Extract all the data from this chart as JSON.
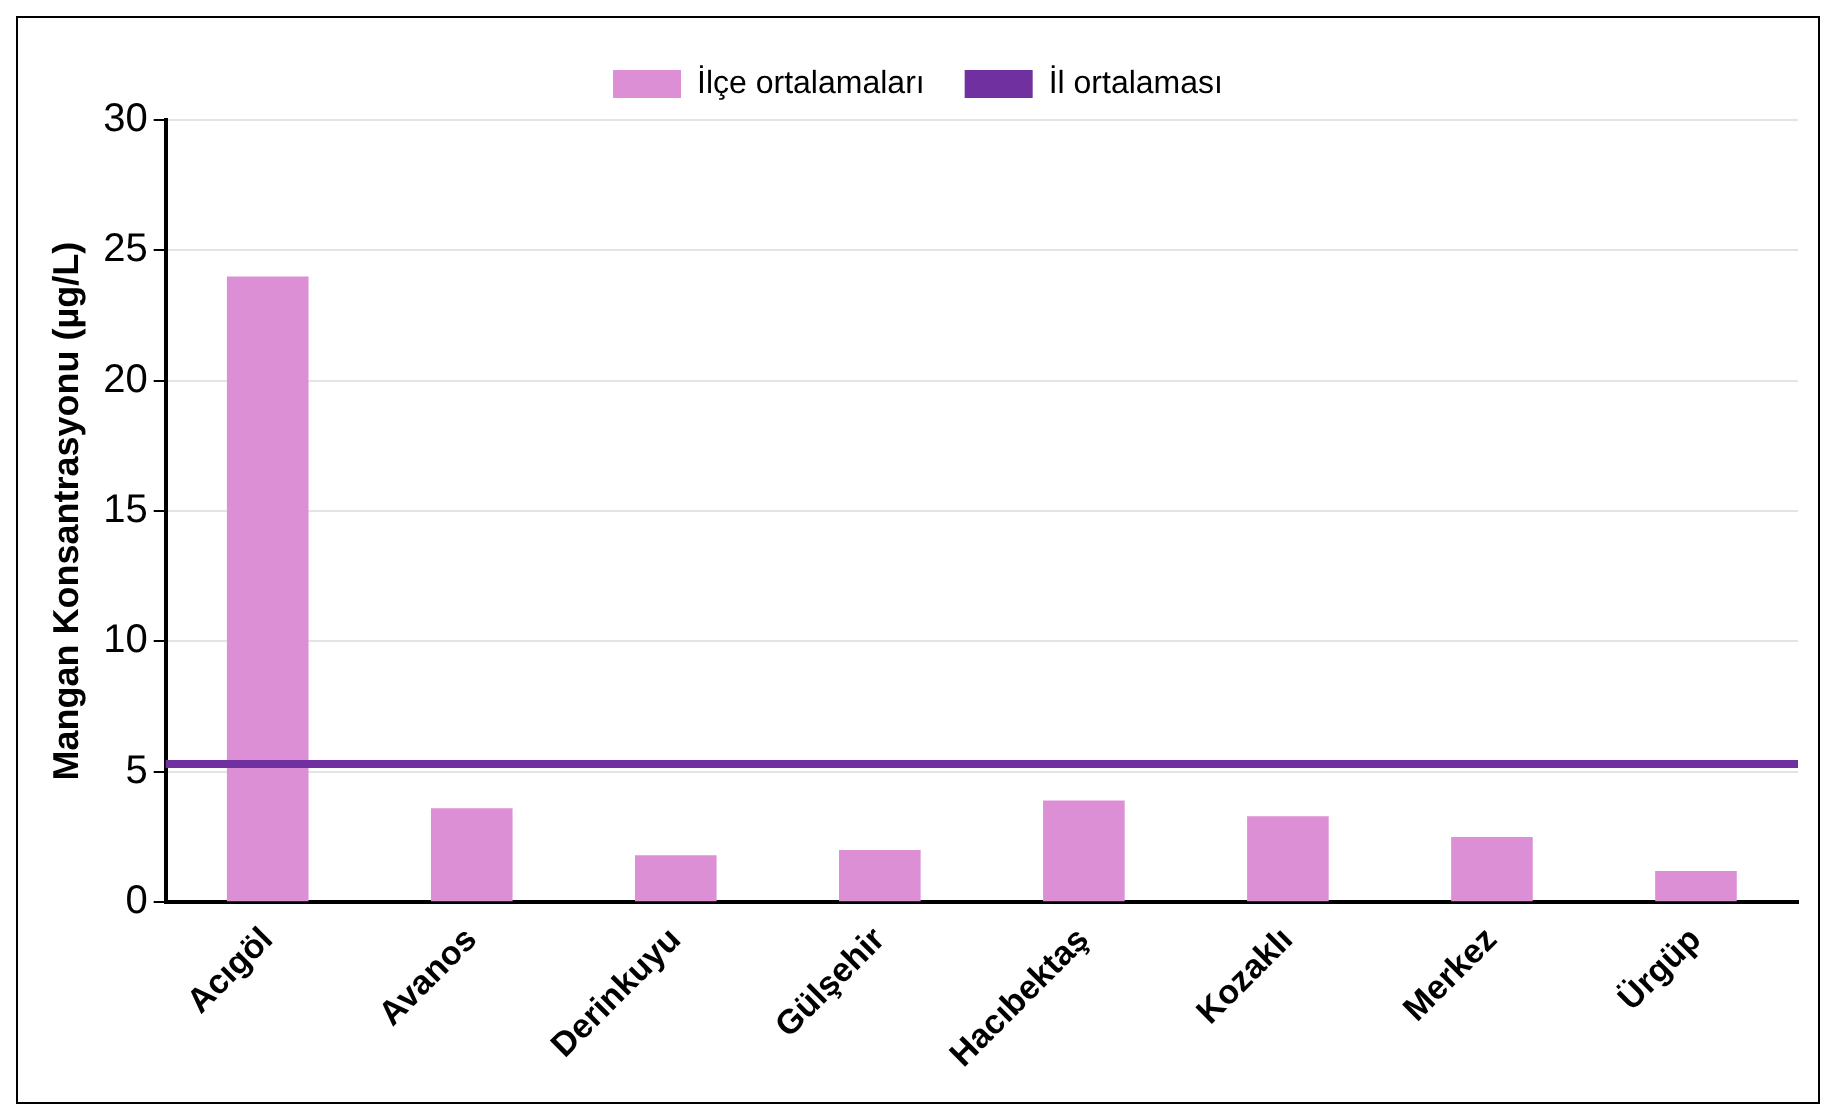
{
  "chart_data": {
    "type": "bar",
    "ylabel": "Mangan Konsantrasyonu (µg/L)",
    "categories": [
      "Acıgöl",
      "Avanos",
      "Derinkuyu",
      "Gülşehir",
      "Hacıbektaş",
      "Kozaklı",
      "Merkez",
      "Ürgüp"
    ],
    "series": [
      {
        "name": "İlçe ortalamaları",
        "color": "#dd8fd6",
        "values": [
          24.0,
          3.6,
          1.8,
          2.0,
          3.9,
          3.3,
          2.5,
          1.2
        ]
      }
    ],
    "ref_lines": [
      {
        "axis": "y",
        "value": 5.3,
        "label": "İl ortalaması",
        "color": "#7030a0",
        "line_style": "solid"
      }
    ],
    "ylim": [
      0,
      30
    ],
    "yticks": [
      0,
      5,
      10,
      15,
      20,
      25,
      30
    ],
    "grid": "y",
    "legend": "top"
  }
}
